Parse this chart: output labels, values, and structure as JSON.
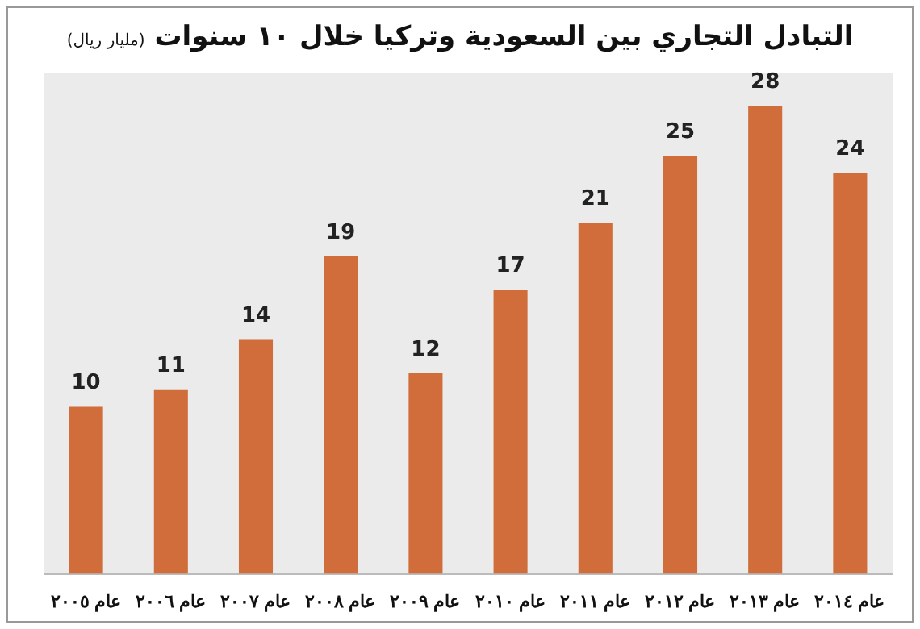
{
  "chart_data": {
    "type": "bar",
    "title": "التبادل التجاري بين السعودية وتركيا خلال ١٠ سنوات",
    "subtitle": "(مليار ريال)",
    "categories": [
      "عام ٢٠٠٥",
      "عام ٢٠٠٦",
      "عام ٢٠٠٧",
      "عام ٢٠٠٨",
      "عام ٢٠٠٩",
      "عام ٢٠١٠",
      "عام ٢٠١١",
      "عام ٢٠١٢",
      "عام ٢٠١٣",
      "عام ٢٠١٤"
    ],
    "values": [
      10,
      11,
      14,
      19,
      12,
      17,
      21,
      25,
      28,
      24
    ],
    "color": "#d06d3a",
    "data_labels": true,
    "grid": false,
    "legend": false
  }
}
